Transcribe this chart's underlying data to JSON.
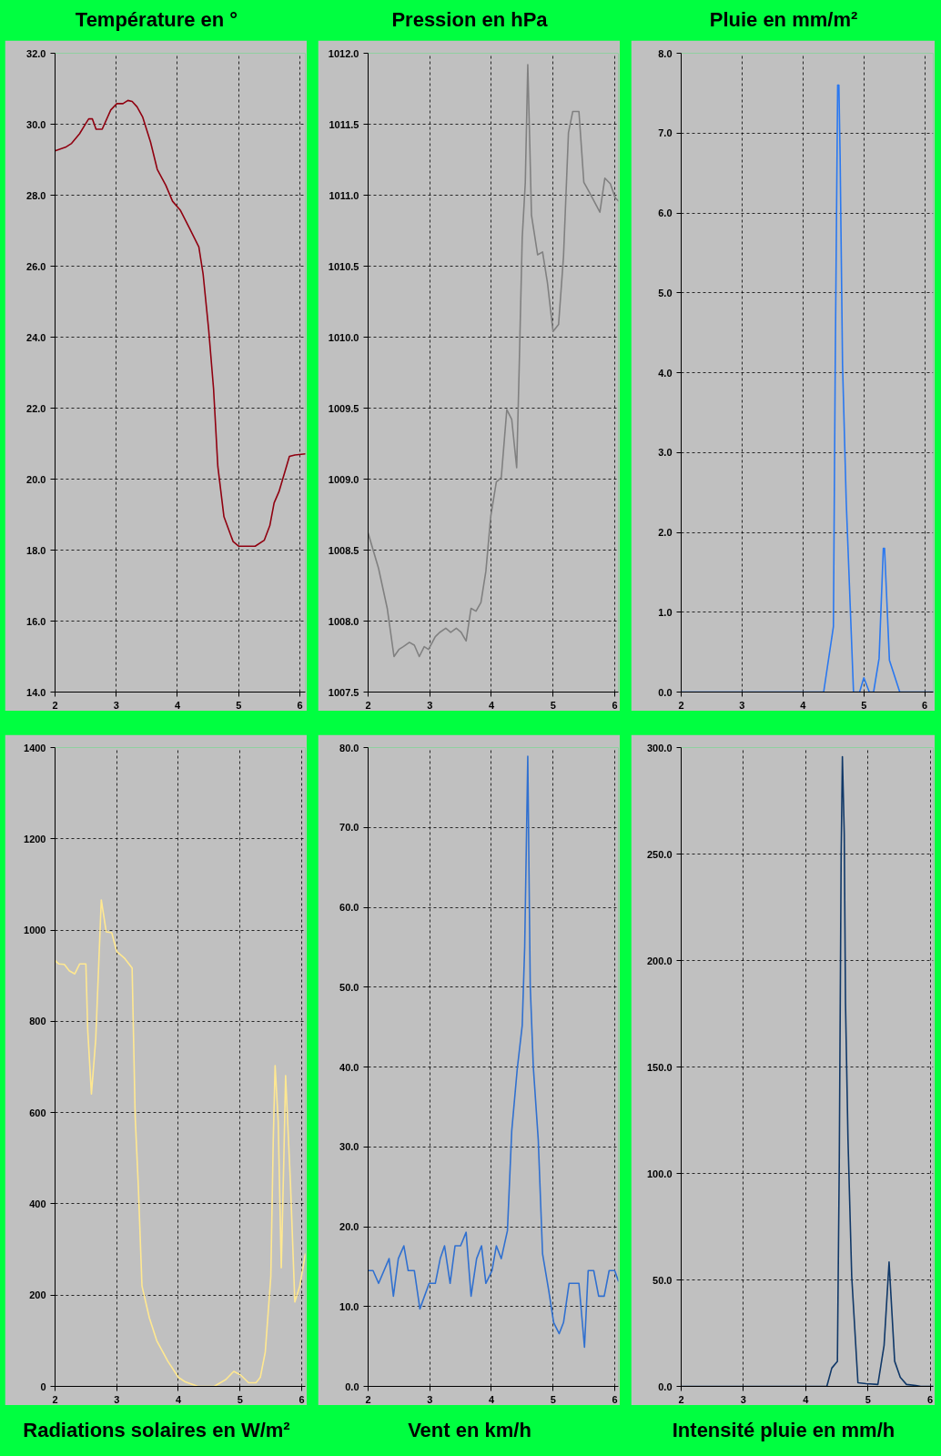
{
  "chart_data": [
    {
      "type": "line",
      "title": "Température en °",
      "x": [
        2.0,
        2.17,
        2.27,
        2.4,
        2.51,
        2.55,
        2.61,
        2.67,
        2.77,
        2.91,
        3.01,
        3.11,
        3.19,
        3.26,
        3.34,
        3.43,
        3.56,
        3.67,
        3.81,
        3.92,
        4.05,
        4.2,
        4.35,
        4.42,
        4.51,
        4.59,
        4.66,
        4.76,
        4.91,
        5.0,
        5.27,
        5.42,
        5.51,
        5.58,
        5.66,
        5.76,
        5.83,
        5.92,
        6.09
      ],
      "series": [
        {
          "color": "#900010",
          "values": [
            29.25,
            29.35,
            29.46,
            29.73,
            30.04,
            30.15,
            30.15,
            29.86,
            29.86,
            30.4,
            30.58,
            30.58,
            30.67,
            30.64,
            30.49,
            30.21,
            29.5,
            28.73,
            28.28,
            27.83,
            27.57,
            27.06,
            26.54,
            25.77,
            24.22,
            22.55,
            20.36,
            18.94,
            18.24,
            18.11,
            18.11,
            18.28,
            18.69,
            19.33,
            19.65,
            20.23,
            20.64,
            20.68,
            20.71
          ]
        }
      ],
      "xlim": [
        2,
        6.09
      ],
      "xticks": [
        2,
        3,
        4,
        5,
        6
      ],
      "ylim": [
        14,
        32
      ],
      "yticks": [
        {
          "value": 14,
          "label": "14.0"
        },
        {
          "value": 16,
          "label": "16.0"
        },
        {
          "value": 18,
          "label": "18.0"
        },
        {
          "value": 20,
          "label": "20.0"
        },
        {
          "value": 22,
          "label": "22.0"
        },
        {
          "value": 24,
          "label": "24.0"
        },
        {
          "value": 26,
          "label": "26.0"
        },
        {
          "value": 28,
          "label": "28.0"
        },
        {
          "value": 30,
          "label": "30.0"
        },
        {
          "value": 32,
          "label": "32.0"
        }
      ],
      "grid": true
    },
    {
      "type": "line",
      "title": "Pression en hPa",
      "x": [
        2.0,
        2.17,
        2.31,
        2.42,
        2.5,
        2.57,
        2.67,
        2.75,
        2.83,
        2.91,
        2.98,
        3.09,
        3.16,
        3.26,
        3.34,
        3.43,
        3.51,
        3.59,
        3.67,
        3.75,
        3.83,
        3.91,
        3.99,
        4.08,
        4.16,
        4.25,
        4.33,
        4.41,
        4.45,
        4.5,
        4.55,
        4.59,
        4.62,
        4.65,
        4.75,
        4.83,
        4.91,
        5.0,
        5.09,
        5.17,
        5.25,
        5.32,
        5.42,
        5.5,
        5.59,
        5.76,
        5.84,
        5.93,
        6.01,
        6.06
      ],
      "series": [
        {
          "color": "#808080",
          "values": [
            1008.62,
            1008.37,
            1008.09,
            1007.75,
            1007.8,
            1007.82,
            1007.85,
            1007.83,
            1007.75,
            1007.82,
            1007.8,
            1007.89,
            1007.92,
            1007.95,
            1007.92,
            1007.95,
            1007.92,
            1007.86,
            1008.09,
            1008.07,
            1008.13,
            1008.35,
            1008.74,
            1008.98,
            1009.01,
            1009.49,
            1009.42,
            1009.08,
            1009.77,
            1010.7,
            1011.09,
            1011.92,
            1011.41,
            1010.86,
            1010.58,
            1010.6,
            1010.38,
            1010.04,
            1010.09,
            1010.57,
            1011.44,
            1011.59,
            1011.59,
            1011.09,
            1011.02,
            1010.88,
            1011.12,
            1011.08,
            1010.98,
            1010.96
          ]
        }
      ],
      "xlim": [
        2,
        6.06
      ],
      "xticks": [
        2,
        3,
        4,
        5,
        6
      ],
      "ylim": [
        1007.5,
        1012
      ],
      "yticks": [
        {
          "value": 1007.5,
          "label": "1007.5"
        },
        {
          "value": 1008,
          "label": "1008.0"
        },
        {
          "value": 1008.5,
          "label": "1008.5"
        },
        {
          "value": 1009,
          "label": "1009.0"
        },
        {
          "value": 1009.5,
          "label": "1009.5"
        },
        {
          "value": 1010,
          "label": "1010.0"
        },
        {
          "value": 1010.5,
          "label": "1010.5"
        },
        {
          "value": 1011,
          "label": "1011.0"
        },
        {
          "value": 1011.5,
          "label": "1011.5"
        },
        {
          "value": 1012,
          "label": "1012.0"
        }
      ],
      "grid": true
    },
    {
      "type": "line",
      "title": "Pluie en mm/m²",
      "x": [
        2.0,
        4.34,
        4.5,
        4.53,
        4.57,
        4.59,
        4.61,
        4.65,
        4.71,
        4.83,
        4.93,
        5.0,
        5.09,
        5.16,
        5.25,
        5.32,
        5.34,
        5.42,
        5.59,
        6.14
      ],
      "series": [
        {
          "color": "#2a78f0",
          "values": [
            0,
            0,
            0.82,
            4.1,
            7.6,
            7.6,
            6.72,
            4.1,
            2.4,
            0,
            0,
            0.18,
            0,
            0,
            0.42,
            1.8,
            1.8,
            0.4,
            0,
            0
          ]
        }
      ],
      "xlim": [
        2,
        6.14
      ],
      "xticks": [
        2,
        3,
        4,
        5,
        6
      ],
      "ylim": [
        0,
        8
      ],
      "yticks": [
        {
          "value": 0,
          "label": "0.0"
        },
        {
          "value": 1,
          "label": "1.0"
        },
        {
          "value": 2,
          "label": "2.0"
        },
        {
          "value": 3,
          "label": "3.0"
        },
        {
          "value": 4,
          "label": "4.0"
        },
        {
          "value": 5,
          "label": "5.0"
        },
        {
          "value": 6,
          "label": "6.0"
        },
        {
          "value": 7,
          "label": "7.0"
        },
        {
          "value": 8,
          "label": "8.0"
        }
      ],
      "grid": true
    },
    {
      "type": "line",
      "title": "Radiations solaires en W/m²",
      "x": [
        2.0,
        2.06,
        2.15,
        2.23,
        2.32,
        2.4,
        2.5,
        2.53,
        2.59,
        2.66,
        2.75,
        2.83,
        2.92,
        3.0,
        3.13,
        3.25,
        3.3,
        3.35,
        3.41,
        3.53,
        3.65,
        3.83,
        4.0,
        4.11,
        4.32,
        4.58,
        4.77,
        4.9,
        5.01,
        5.14,
        5.26,
        5.33,
        5.41,
        5.5,
        5.54,
        5.57,
        5.62,
        5.67,
        5.71,
        5.74,
        5.82,
        5.89,
        5.97,
        6.06
      ],
      "series": [
        {
          "color": "#ffe890",
          "values": [
            933,
            926,
            925,
            911,
            904,
            926,
            926,
            781,
            641,
            761,
            1066,
            996,
            994,
            953,
            938,
            917,
            591,
            441,
            220,
            150,
            100,
            55,
            20,
            10,
            0,
            0,
            15,
            33,
            25,
            8,
            8,
            20,
            75,
            240,
            541,
            703,
            581,
            260,
            491,
            681,
            441,
            185,
            220,
            290
          ]
        }
      ],
      "xlim": [
        2,
        6.06
      ],
      "xticks": [
        2,
        3,
        4,
        5,
        6
      ],
      "ylim": [
        0,
        1400
      ],
      "yticks": [
        0,
        200,
        400,
        600,
        800,
        1000,
        1200,
        1400
      ],
      "grid": true
    },
    {
      "type": "line",
      "title": "Vent en km/h",
      "x": [
        2.0,
        2.08,
        2.17,
        2.34,
        2.41,
        2.49,
        2.58,
        2.65,
        2.75,
        2.84,
        2.99,
        3.09,
        3.17,
        3.24,
        3.33,
        3.41,
        3.5,
        3.59,
        3.67,
        3.76,
        3.84,
        3.91,
        4.01,
        4.08,
        4.16,
        4.26,
        4.33,
        4.42,
        4.5,
        4.54,
        4.59,
        4.63,
        4.68,
        4.76,
        4.83,
        4.93,
        5.01,
        5.1,
        5.17,
        5.26,
        5.42,
        5.51,
        5.57,
        5.66,
        5.74,
        5.83,
        5.91,
        6.0,
        6.06
      ],
      "series": [
        {
          "color": "#3070d0",
          "values": [
            14.5,
            14.5,
            12.9,
            16.0,
            11.3,
            16.0,
            17.6,
            14.5,
            14.5,
            9.7,
            12.9,
            12.9,
            16.0,
            17.6,
            12.9,
            17.6,
            17.6,
            19.3,
            11.3,
            16.0,
            17.6,
            12.9,
            14.5,
            17.6,
            16.0,
            19.5,
            32.0,
            39.8,
            45.2,
            55.0,
            78.9,
            50.2,
            40.0,
            30.9,
            16.6,
            12.0,
            8.0,
            6.6,
            8.0,
            12.9,
            12.9,
            4.9,
            14.5,
            14.5,
            11.3,
            11.3,
            14.5,
            14.5,
            13.2
          ]
        }
      ],
      "xlim": [
        2,
        6.06
      ],
      "xticks": [
        2,
        3,
        4,
        5,
        6
      ],
      "ylim": [
        0,
        80
      ],
      "yticks": [
        {
          "value": 0,
          "label": "0.0"
        },
        {
          "value": 10,
          "label": "10.0"
        },
        {
          "value": 20,
          "label": "20.0"
        },
        {
          "value": 30,
          "label": "30.0"
        },
        {
          "value": 40,
          "label": "40.0"
        },
        {
          "value": 50,
          "label": "50.0"
        },
        {
          "value": 60,
          "label": "60.0"
        },
        {
          "value": 70,
          "label": "70.0"
        },
        {
          "value": 80,
          "label": "80.0"
        }
      ],
      "grid": true
    },
    {
      "type": "line",
      "title": "Intensité pluie en mm/h",
      "x": [
        2.0,
        4.34,
        4.42,
        4.51,
        4.54,
        4.57,
        4.59,
        4.62,
        4.64,
        4.68,
        4.74,
        4.84,
        4.97,
        5.16,
        5.26,
        5.34,
        5.43,
        5.52,
        5.62,
        5.77,
        5.85,
        6.05
      ],
      "series": [
        {
          "color": "#103868",
          "values": [
            0,
            0,
            8.6,
            11.8,
            105,
            249,
            295.7,
            259.6,
            180,
            116,
            51.5,
            1.7,
            1.3,
            0.9,
            19.3,
            58.4,
            11.8,
            4.3,
            0.9,
            0.4,
            0,
            0
          ]
        }
      ],
      "xlim": [
        2,
        6.05
      ],
      "xticks": [
        2,
        3,
        4,
        5,
        6
      ],
      "ylim": [
        0,
        300
      ],
      "yticks": [
        {
          "value": 0,
          "label": "0.0"
        },
        {
          "value": 50,
          "label": "50.0"
        },
        {
          "value": 100,
          "label": "100.0"
        },
        {
          "value": 150,
          "label": "150.0"
        },
        {
          "value": 200,
          "label": "200.0"
        },
        {
          "value": 250,
          "label": "250.0"
        },
        {
          "value": 300,
          "label": "300.0"
        }
      ],
      "grid": true
    }
  ]
}
